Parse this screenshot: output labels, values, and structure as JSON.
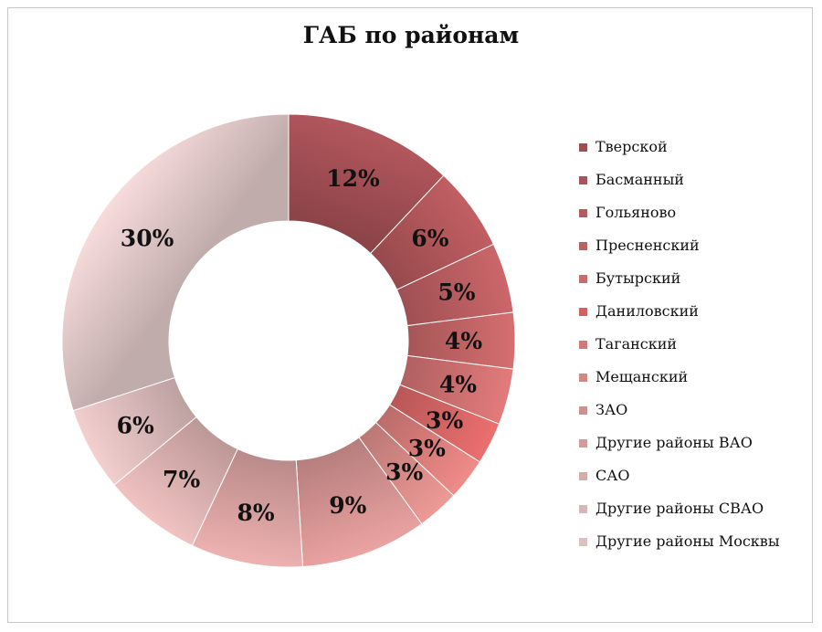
{
  "chart_data": {
    "type": "pie",
    "title": "ГАБ по районам",
    "categories": [
      "Тверской",
      "Басманный",
      "Гольяново",
      "Пресненский",
      "Бутырский",
      "Даниловский",
      "Таганский",
      "Мещанский",
      "ЗАО",
      "Другие районы ВАО",
      "САО",
      "Другие районы СВАО",
      "Другие районы Москвы"
    ],
    "values": [
      12,
      6,
      5,
      4,
      4,
      3,
      3,
      3,
      9,
      8,
      7,
      6,
      30
    ],
    "data_labels": [
      "12%",
      "6%",
      "5%",
      "4%",
      "4%",
      "3%",
      "3%",
      "3%",
      "9%",
      "8%",
      "7%",
      "6%",
      "30%"
    ],
    "colors": [
      "#b3575d",
      "#c25f63",
      "#cc676a",
      "#d56e70",
      "#e37b7c",
      "#ec6f6f",
      "#f08b88",
      "#ee9a96",
      "#eba3a2",
      "#eeb2b1",
      "#f1c3c2",
      "#f3cfcf",
      "#f8dcdc"
    ],
    "donut": true,
    "legend_position": "right"
  }
}
